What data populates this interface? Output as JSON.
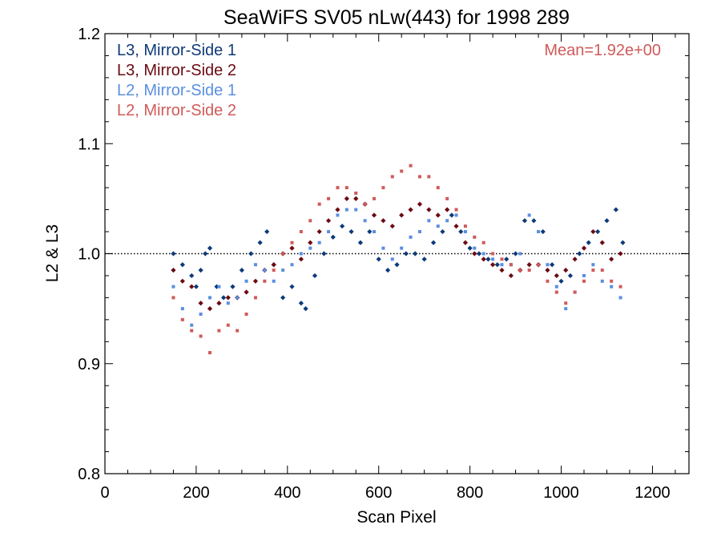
{
  "chart_data": {
    "type": "scatter",
    "title": "SeaWiFS SV05 nLw(443) for 1998 289",
    "xlabel": "Scan Pixel",
    "ylabel": "L2 & L3",
    "xlim": [
      0,
      1280
    ],
    "ylim": [
      0.8,
      1.2
    ],
    "x_ticks": [
      0,
      200,
      400,
      600,
      800,
      1000,
      1200
    ],
    "y_ticks": [
      0.8,
      0.9,
      1.0,
      1.1,
      1.2
    ],
    "x_tick_labels": [
      "0",
      "200",
      "400",
      "600",
      "800",
      "1000",
      "1200"
    ],
    "y_tick_labels": [
      "0.8",
      "0.9",
      "1.0",
      "1.1",
      "1.2"
    ],
    "reference_line": 1.0,
    "annotation": "Mean=1.92e+00",
    "legend_position": "top-left",
    "series": [
      {
        "name": "L3, Mirror-Side 1",
        "color": "#0d3a78",
        "marker": "diamond",
        "points": [
          [
            150,
            1.0
          ],
          [
            170,
            0.99
          ],
          [
            190,
            0.98
          ],
          [
            200,
            0.97
          ],
          [
            210,
            0.985
          ],
          [
            220,
            1.0
          ],
          [
            230,
            1.005
          ],
          [
            245,
            0.97
          ],
          [
            260,
            0.96
          ],
          [
            280,
            0.97
          ],
          [
            300,
            0.985
          ],
          [
            320,
            1.0
          ],
          [
            340,
            1.01
          ],
          [
            355,
            1.02
          ],
          [
            370,
            0.99
          ],
          [
            390,
            0.96
          ],
          [
            410,
            0.97
          ],
          [
            430,
            0.955
          ],
          [
            440,
            0.95
          ],
          [
            460,
            0.98
          ],
          [
            480,
            1.0
          ],
          [
            500,
            1.015
          ],
          [
            520,
            1.025
          ],
          [
            540,
            1.02
          ],
          [
            560,
            1.01
          ],
          [
            580,
            1.02
          ],
          [
            600,
            0.995
          ],
          [
            620,
            0.985
          ],
          [
            640,
            0.99
          ],
          [
            660,
            1.0
          ],
          [
            680,
            1.0
          ],
          [
            700,
            0.995
          ],
          [
            720,
            1.01
          ],
          [
            740,
            1.02
          ],
          [
            760,
            1.035
          ],
          [
            780,
            1.02
          ],
          [
            800,
            1.005
          ],
          [
            820,
            1.0
          ],
          [
            840,
            0.995
          ],
          [
            860,
            0.99
          ],
          [
            880,
            0.995
          ],
          [
            900,
            1.0
          ],
          [
            920,
            1.03
          ],
          [
            940,
            1.03
          ],
          [
            960,
            1.02
          ],
          [
            980,
            0.99
          ],
          [
            1000,
            0.975
          ],
          [
            1020,
            0.98
          ],
          [
            1040,
            1.0
          ],
          [
            1060,
            1.01
          ],
          [
            1080,
            1.02
          ],
          [
            1100,
            1.03
          ],
          [
            1120,
            1.04
          ],
          [
            1135,
            1.01
          ]
        ]
      },
      {
        "name": "L3, Mirror-Side 2",
        "color": "#6b0a12",
        "marker": "diamond",
        "points": [
          [
            150,
            0.985
          ],
          [
            170,
            0.975
          ],
          [
            190,
            0.97
          ],
          [
            210,
            0.955
          ],
          [
            230,
            0.95
          ],
          [
            250,
            0.955
          ],
          [
            270,
            0.96
          ],
          [
            290,
            0.96
          ],
          [
            310,
            0.965
          ],
          [
            330,
            0.975
          ],
          [
            350,
            0.985
          ],
          [
            370,
            0.99
          ],
          [
            390,
            1.0
          ],
          [
            410,
            1.005
          ],
          [
            430,
            0.995
          ],
          [
            450,
            1.01
          ],
          [
            470,
            1.02
          ],
          [
            490,
            1.03
          ],
          [
            510,
            1.04
          ],
          [
            530,
            1.05
          ],
          [
            550,
            1.05
          ],
          [
            570,
            1.045
          ],
          [
            590,
            1.035
          ],
          [
            610,
            1.03
          ],
          [
            630,
            1.025
          ],
          [
            650,
            1.035
          ],
          [
            670,
            1.04
          ],
          [
            690,
            1.045
          ],
          [
            710,
            1.04
          ],
          [
            730,
            1.035
          ],
          [
            750,
            1.04
          ],
          [
            770,
            1.025
          ],
          [
            790,
            1.01
          ],
          [
            810,
            1.0
          ],
          [
            830,
            0.995
          ],
          [
            850,
            0.99
          ],
          [
            870,
            0.985
          ],
          [
            890,
            0.98
          ],
          [
            910,
            0.985
          ],
          [
            930,
            0.99
          ],
          [
            950,
            0.99
          ],
          [
            970,
            0.985
          ],
          [
            990,
            0.98
          ],
          [
            1010,
            0.985
          ],
          [
            1030,
            0.995
          ],
          [
            1050,
            1.005
          ],
          [
            1070,
            1.02
          ],
          [
            1090,
            1.01
          ],
          [
            1110,
            0.995
          ],
          [
            1130,
            1.0
          ]
        ]
      },
      {
        "name": "L2, Mirror-Side 1",
        "color": "#5a8fe0",
        "marker": "square",
        "points": [
          [
            150,
            0.97
          ],
          [
            170,
            0.95
          ],
          [
            190,
            0.935
          ],
          [
            210,
            0.945
          ],
          [
            230,
            0.96
          ],
          [
            250,
            0.97
          ],
          [
            270,
            0.955
          ],
          [
            290,
            0.96
          ],
          [
            310,
            0.975
          ],
          [
            330,
            0.99
          ],
          [
            350,
            0.985
          ],
          [
            370,
            0.975
          ],
          [
            390,
            0.985
          ],
          [
            410,
            0.99
          ],
          [
            430,
            1.0
          ],
          [
            450,
            1.005
          ],
          [
            470,
            1.01
          ],
          [
            490,
            1.02
          ],
          [
            510,
            1.035
          ],
          [
            530,
            1.04
          ],
          [
            550,
            1.04
          ],
          [
            570,
            1.03
          ],
          [
            590,
            1.02
          ],
          [
            610,
            1.005
          ],
          [
            630,
            0.995
          ],
          [
            650,
            1.005
          ],
          [
            670,
            1.015
          ],
          [
            690,
            1.02
          ],
          [
            710,
            1.03
          ],
          [
            730,
            1.025
          ],
          [
            750,
            1.03
          ],
          [
            770,
            1.035
          ],
          [
            790,
            1.02
          ],
          [
            810,
            1.005
          ],
          [
            830,
            1.0
          ],
          [
            850,
            0.995
          ],
          [
            870,
            0.99
          ],
          [
            890,
            0.99
          ],
          [
            910,
            1.0
          ],
          [
            930,
            1.035
          ],
          [
            950,
            1.02
          ],
          [
            970,
            0.99
          ],
          [
            990,
            0.97
          ],
          [
            1010,
            0.95
          ],
          [
            1030,
            0.965
          ],
          [
            1050,
            0.98
          ],
          [
            1070,
            0.99
          ],
          [
            1090,
            0.975
          ],
          [
            1110,
            0.97
          ],
          [
            1130,
            0.96
          ]
        ]
      },
      {
        "name": "L2, Mirror-Side 2",
        "color": "#d05a5a",
        "marker": "square",
        "points": [
          [
            150,
            0.96
          ],
          [
            170,
            0.94
          ],
          [
            190,
            0.93
          ],
          [
            210,
            0.925
          ],
          [
            230,
            0.91
          ],
          [
            250,
            0.93
          ],
          [
            270,
            0.935
          ],
          [
            290,
            0.93
          ],
          [
            310,
            0.945
          ],
          [
            330,
            0.96
          ],
          [
            350,
            0.975
          ],
          [
            370,
            0.985
          ],
          [
            390,
            1.0
          ],
          [
            410,
            1.01
          ],
          [
            430,
            1.02
          ],
          [
            450,
            1.03
          ],
          [
            470,
            1.045
          ],
          [
            490,
            1.05
          ],
          [
            510,
            1.06
          ],
          [
            530,
            1.06
          ],
          [
            550,
            1.055
          ],
          [
            570,
            1.045
          ],
          [
            590,
            1.05
          ],
          [
            610,
            1.06
          ],
          [
            630,
            1.07
          ],
          [
            650,
            1.075
          ],
          [
            670,
            1.08
          ],
          [
            690,
            1.07
          ],
          [
            710,
            1.07
          ],
          [
            730,
            1.06
          ],
          [
            750,
            1.05
          ],
          [
            770,
            1.04
          ],
          [
            790,
            1.025
          ],
          [
            810,
            1.015
          ],
          [
            830,
            1.01
          ],
          [
            850,
            1.0
          ],
          [
            870,
            0.995
          ],
          [
            890,
            0.99
          ],
          [
            910,
            0.985
          ],
          [
            930,
            0.985
          ],
          [
            950,
            0.99
          ],
          [
            970,
            0.975
          ],
          [
            990,
            0.965
          ],
          [
            1010,
            0.955
          ],
          [
            1030,
            0.965
          ],
          [
            1050,
            0.975
          ],
          [
            1070,
            0.985
          ],
          [
            1090,
            0.985
          ],
          [
            1110,
            0.975
          ],
          [
            1130,
            0.97
          ]
        ]
      }
    ]
  }
}
